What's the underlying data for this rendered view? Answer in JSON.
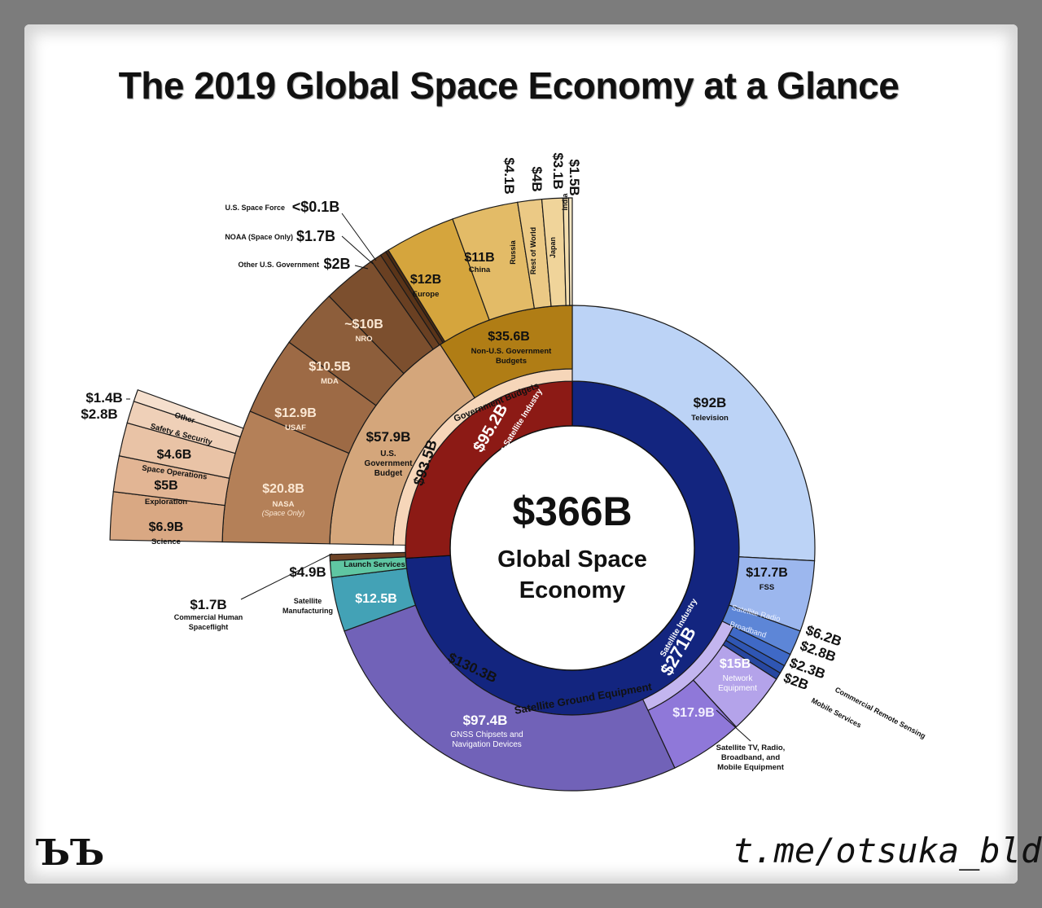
{
  "title": "The 2019 Global Space Economy at a Glance",
  "logo": "ЪЪ",
  "watermark": "t.me/otsuka_bld",
  "chart_data": {
    "type": "sunburst",
    "center": {
      "value": "$366B",
      "line1": "Global Space",
      "line2": "Economy"
    },
    "colors": {
      "sat_core": "#13257f",
      "nonsat_core": "#8c1a15",
      "outline": "#1a1a1a"
    },
    "rings": {
      "core": [
        {
          "name": "Satellite Industry",
          "value": 271,
          "label": "$271B",
          "sub": "Satellite Industry",
          "color": "#13257f",
          "a1": 0,
          "a2": 266.5
        },
        {
          "name": "Non-Satellite Industry",
          "value": 95.2,
          "label": "$95.2B",
          "sub": "Non-Satellite Industry",
          "color": "#8c1a15",
          "a1": 266.5,
          "a2": 360
        }
      ],
      "band": [
        {
          "name": "Satellite Ground Equipment",
          "label": "$130.3B",
          "sub": "Satellite Ground Equipment",
          "color": "#c3b5ef",
          "a1": 115,
          "a2": 245
        },
        {
          "name": "Government Budgets",
          "label": "$93.5B",
          "sub": "Government Budgets",
          "color": "#f6d6b9",
          "a1": 271,
          "a2": 360
        }
      ],
      "outer": [
        {
          "label": "$92B",
          "sub": "Television",
          "color": "#bcd3f6",
          "a1": 0,
          "a2": 93,
          "r1": 205,
          "r2": 298,
          "text": "#111"
        },
        {
          "label": "$17.7B",
          "sub": "FSS",
          "color": "#9cb7ee",
          "a1": 93,
          "a2": 110,
          "r1": 205,
          "r2": 298,
          "text": "#111"
        },
        {
          "label": "",
          "sub": "Satellite Radio",
          "color": "#5d86d7",
          "a1": 110,
          "a2": 116,
          "r1": 205,
          "r2": 298,
          "text": "#e9efff"
        },
        {
          "label": "",
          "sub": "Broadband",
          "color": "#3f69c6",
          "a1": 116,
          "a2": 119,
          "r1": 205,
          "r2": 298,
          "text": "#e9efff"
        },
        {
          "label": "",
          "sub": "",
          "color": "#2f56b3",
          "a1": 119,
          "a2": 121,
          "r1": 205,
          "r2": 298,
          "text": "#fff"
        },
        {
          "label": "",
          "sub": "",
          "color": "#2747a0",
          "a1": 121,
          "a2": 122.7,
          "r1": 205,
          "r2": 298,
          "text": "#fff"
        },
        {
          "label": "$15B",
          "sub": "Network Equipment",
          "color": "#b4a3ea",
          "a1": 122.7,
          "a2": 137.5,
          "r1": 205,
          "r2": 298,
          "text": "#fff"
        },
        {
          "label": "$17.9B",
          "sub": "",
          "color": "#8f78d9",
          "a1": 137.5,
          "a2": 155,
          "r1": 205,
          "r2": 298,
          "text": "#f2efff"
        },
        {
          "label": "$97.4B",
          "sub": "GNSS Chipsets and Navigation Devices",
          "color": "#7162b8",
          "a1": 155,
          "a2": 250,
          "r1": 205,
          "r2": 298,
          "text": "#fff"
        },
        {
          "label": "$12.5B",
          "sub": "",
          "color": "#43a2b6",
          "a1": 250,
          "a2": 263,
          "r1": 205,
          "r2": 298,
          "text": "#fff"
        },
        {
          "label": "",
          "sub": "Launch Services",
          "color": "#5fc6a2",
          "a1": 263,
          "a2": 267,
          "r1": 205,
          "r2": 298,
          "text": "#111"
        },
        {
          "label": "",
          "sub": "",
          "color": "#6e4427",
          "a1": 267,
          "a2": 268.5,
          "r1": 205,
          "r2": 298,
          "text": "#fff"
        },
        {
          "label": "$57.9B",
          "sub": "U.S. Government Budget",
          "color": "#d4a67b",
          "a1": 271,
          "a2": 327,
          "r1": 205,
          "r2": 298,
          "text": "#111"
        },
        {
          "label": "$35.6B",
          "sub": "Non-U.S. Government Budgets",
          "color": "#b07d15",
          "a1": 327,
          "a2": 360,
          "r1": 205,
          "r2": 298,
          "text": "#111"
        },
        {
          "label": "$20.8B",
          "sub": "NASA",
          "note": "(Space Only)",
          "color": "#b48058",
          "a1": 271,
          "a2": 293,
          "r1": 298,
          "r2": 430,
          "text": "#fbe8d4"
        },
        {
          "label": "$12.9B",
          "sub": "USAF",
          "color": "#9d6a45",
          "a1": 293,
          "a2": 306,
          "r1": 298,
          "r2": 430,
          "text": "#fbe8d4"
        },
        {
          "label": "$10.5B",
          "sub": "MDA",
          "color": "#8d5e3b",
          "a1": 306,
          "a2": 316,
          "r1": 298,
          "r2": 430,
          "text": "#fbe8d4"
        },
        {
          "label": "~$10B",
          "sub": "NRO",
          "color": "#7c4f2e",
          "a1": 316,
          "a2": 325,
          "r1": 298,
          "r2": 430,
          "text": "#fbe8d4"
        },
        {
          "label": "",
          "sub": "",
          "color": "#6a4022",
          "a1": 325,
          "a2": 326.8,
          "r1": 298,
          "r2": 430,
          "text": "#fff"
        },
        {
          "label": "",
          "sub": "",
          "color": "#5a3418",
          "a1": 326.8,
          "a2": 327.8,
          "r1": 298,
          "r2": 430,
          "text": "#fff"
        },
        {
          "label": "",
          "sub": "",
          "color": "#4a2a12",
          "a1": 327.8,
          "a2": 328.3,
          "r1": 298,
          "r2": 430,
          "text": "#fff"
        },
        {
          "label": "$12B",
          "sub": "Europe",
          "color": "#d5a53d",
          "a1": 328.3,
          "a2": 340,
          "r1": 298,
          "r2": 430,
          "text": "#111"
        },
        {
          "label": "$11B",
          "sub": "China",
          "color": "#e3bb67",
          "a1": 340,
          "a2": 351,
          "r1": 298,
          "r2": 430,
          "text": "#111"
        },
        {
          "label": "",
          "sub": "Russia",
          "color": "#ebc985",
          "a1": 351,
          "a2": 355,
          "r1": 298,
          "r2": 430,
          "text": "#111"
        },
        {
          "label": "",
          "sub": "Rest of World",
          "color": "#f0d49a",
          "a1": 355,
          "a2": 358.5,
          "r1": 298,
          "r2": 430,
          "text": "#111"
        },
        {
          "label": "",
          "sub": "Japan",
          "color": "#f4deaf",
          "a1": 358.5,
          "a2": 359.4,
          "r1": 298,
          "r2": 430,
          "text": "#111"
        },
        {
          "label": "",
          "sub": "India",
          "color": "#f8e8c6",
          "a1": 359.4,
          "a2": 360,
          "r1": 298,
          "r2": 430,
          "text": "#111"
        },
        {
          "label": "$6.9B",
          "sub": "Science",
          "color": "#d9a883",
          "a1": 271,
          "a2": 277,
          "r1": 430,
          "r2": 568,
          "text": "#111"
        },
        {
          "label": "$5B",
          "sub": "Exploration",
          "color": "#e2b594",
          "a1": 277,
          "a2": 281.5,
          "r1": 430,
          "r2": 568,
          "text": "#111"
        },
        {
          "label": "$4.6B",
          "sub": "Space Operations",
          "color": "#e9c3a6",
          "a1": 281.5,
          "a2": 285.7,
          "r1": 430,
          "r2": 568,
          "text": "#111"
        },
        {
          "label": "",
          "sub": "Safety & Security",
          "color": "#efd0b8",
          "a1": 285.7,
          "a2": 288.5,
          "r1": 430,
          "r2": 568,
          "text": "#111"
        },
        {
          "label": "",
          "sub": "Other",
          "color": "#f5dfcd",
          "a1": 288.5,
          "a2": 290,
          "r1": 430,
          "r2": 568,
          "text": "#111"
        }
      ]
    },
    "callouts": [
      {
        "text": "$1.5B",
        "group": "top"
      },
      {
        "text": "$3.1B",
        "group": "top"
      },
      {
        "text": "$4B",
        "group": "top"
      },
      {
        "text": "$4.1B",
        "group": "top"
      },
      {
        "text": "<$0.1B",
        "sub": "U.S. Space Force"
      },
      {
        "text": "$1.7B",
        "sub": "NOAA (Space Only)"
      },
      {
        "text": "$2B",
        "sub": "Other U.S. Government"
      },
      {
        "text": "$1.4B"
      },
      {
        "text": "$2.8B"
      },
      {
        "text": "$4.9B",
        "sub": "Satellite Manufacturing"
      },
      {
        "text": "$1.7B",
        "sub": "Commercial Human Spaceflight"
      },
      {
        "text": "$6.2B",
        "sub": "Commercial Remote Sensing"
      },
      {
        "text": "$2.8B"
      },
      {
        "text": "$2.3B",
        "sub": "Mobile Services"
      },
      {
        "text": "$2B"
      },
      {
        "text": "Satellite TV, Radio, Broadband, and Mobile Equipment"
      }
    ]
  }
}
